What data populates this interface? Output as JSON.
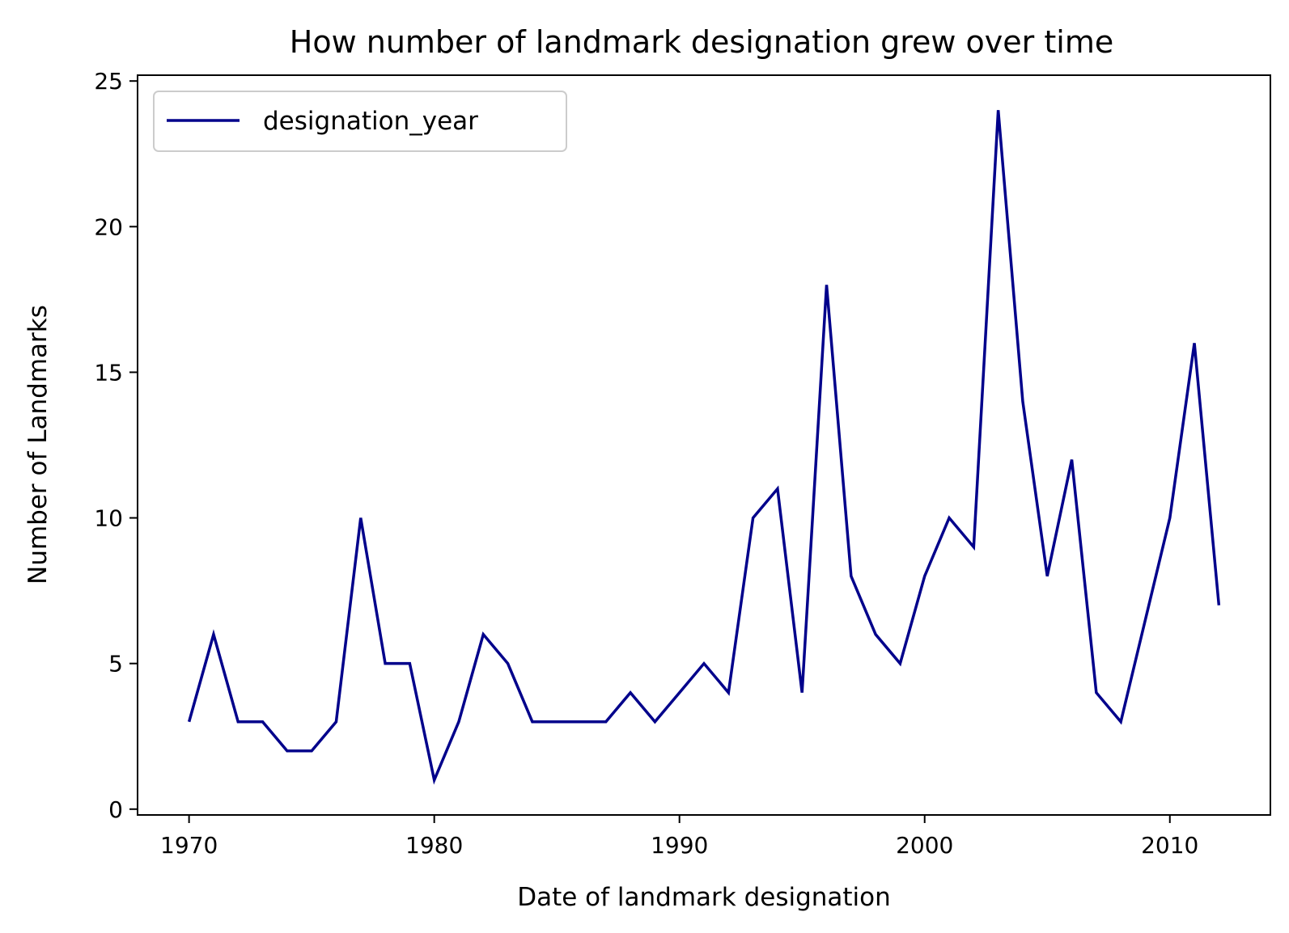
{
  "chart_data": {
    "type": "line",
    "title": "How number of landmark designation grew over time",
    "xlabel": "Date of landmark designation",
    "ylabel": "Number of Landmarks",
    "xlim": [
      1967.9,
      2014.1
    ],
    "ylim": [
      -0.2,
      25.2
    ],
    "x_ticks": [
      1970,
      1980,
      1990,
      2000,
      2010
    ],
    "y_ticks": [
      0,
      5,
      10,
      15,
      20,
      25
    ],
    "grid": false,
    "legend_position": "top-left",
    "series": [
      {
        "name": "designation_year",
        "color": "#00008b",
        "x": [
          1970,
          1971,
          1972,
          1973,
          1974,
          1975,
          1976,
          1977,
          1978,
          1979,
          1980,
          1981,
          1982,
          1983,
          1984,
          1985,
          1986,
          1987,
          1988,
          1989,
          1990,
          1991,
          1992,
          1993,
          1994,
          1995,
          1996,
          1997,
          1998,
          1999,
          2000,
          2001,
          2002,
          2003,
          2004,
          2005,
          2006,
          2007,
          2008,
          2009,
          2010,
          2011,
          2012
        ],
        "values": [
          3,
          6,
          3,
          3,
          2,
          2,
          3,
          10,
          5,
          5,
          1,
          3,
          6,
          5,
          3,
          3,
          3,
          3,
          4,
          3,
          4,
          5,
          4,
          10,
          11,
          4,
          18,
          8,
          6,
          5,
          8,
          10,
          9,
          24,
          14,
          8,
          12,
          4,
          3,
          6.5,
          10,
          16,
          7
        ]
      }
    ]
  }
}
